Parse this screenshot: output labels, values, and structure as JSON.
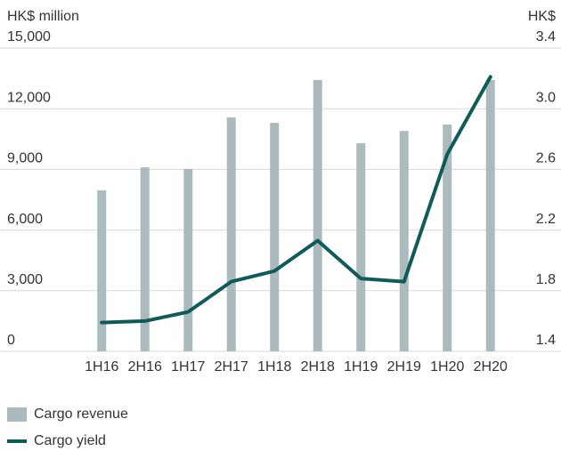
{
  "chart_data": {
    "type": "bar",
    "y_label": "HK$ million",
    "y2_label": "HK$",
    "categories": [
      "1H16",
      "2H16",
      "1H17",
      "2H17",
      "1H18",
      "2H18",
      "1H19",
      "2H19",
      "1H20",
      "2H20"
    ],
    "series": [
      {
        "name": "Cargo revenue",
        "type": "bar",
        "color": "#abbbbd",
        "values": [
          7960,
          9100,
          9020,
          11570,
          11300,
          13420,
          10290,
          10900,
          11220,
          13420
        ]
      },
      {
        "name": "Cargo yield",
        "type": "line",
        "axis": "y2",
        "color": "#0f5b59",
        "values": [
          1.59,
          1.6,
          1.66,
          1.86,
          1.93,
          2.13,
          1.88,
          1.86,
          2.7,
          3.21
        ]
      }
    ],
    "ylim": [
      0,
      15000
    ],
    "yticks": [
      0,
      {
        "value": 3000,
        "label": "3,000"
      },
      {
        "value": 6000,
        "label": "6,000"
      },
      {
        "value": 9000,
        "label": "9,000"
      },
      {
        "value": 12000,
        "label": "12,000"
      },
      {
        "value": 15000,
        "label": "15,000"
      }
    ],
    "y2lim": [
      1.4,
      3.4
    ],
    "y2ticks": [
      1.4,
      1.8,
      2.2,
      2.6,
      {
        "value": 3.0,
        "label": "3.0"
      },
      3.4
    ],
    "grid": true
  }
}
